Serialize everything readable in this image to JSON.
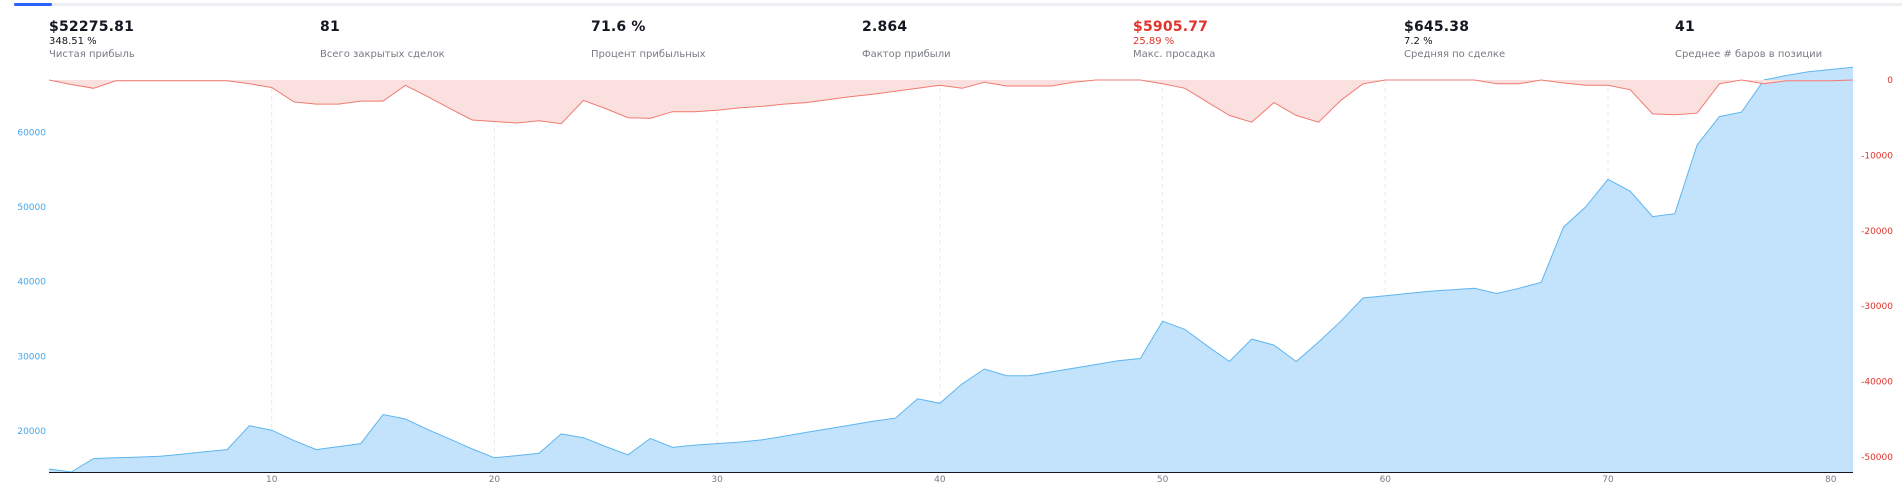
{
  "progress": 0.02,
  "stats": [
    {
      "value": "$52275.81",
      "sub": "348.51 %",
      "label": "Чистая прибыль",
      "negative": false
    },
    {
      "value": "81",
      "sub": "",
      "label": "Всего закрытых сделок",
      "negative": false
    },
    {
      "value": "71.6 %",
      "sub": "",
      "label": "Процент прибыльных",
      "negative": false
    },
    {
      "value": "2.864",
      "sub": "",
      "label": "Фактор прибыли",
      "negative": false
    },
    {
      "value": "$5905.77",
      "sub": "25.89 %",
      "label": "Макс. просадка",
      "negative": true
    },
    {
      "value": "$645.38",
      "sub": "7.2 %",
      "label": "Средняя по сделке",
      "negative": false
    },
    {
      "value": "41",
      "sub": "",
      "label": "Среднее # баров в позиции",
      "negative": false
    }
  ],
  "colors": {
    "equity_line": "#5eb5f0",
    "equity_fill": "#c2e3fb",
    "drawdown_line": "#ef7b71",
    "drawdown_fill": "#fae0de",
    "left_axis_text": "#43a6ec",
    "right_axis_text": "#e0342b",
    "negative_text": "#e0342b"
  },
  "chart_data": {
    "type": "area",
    "x_ticks": [
      "10",
      "20",
      "30",
      "40",
      "50",
      "60",
      "70",
      "80"
    ],
    "xlim": [
      0,
      81
    ],
    "left_axis": {
      "ticks": [
        "20000",
        "30000",
        "40000",
        "50000",
        "60000"
      ],
      "ylim": [
        14500,
        67000
      ]
    },
    "right_axis": {
      "ticks": [
        "0",
        "-10000",
        "-20000",
        "-30000",
        "-40000",
        "-50000"
      ],
      "ylim": [
        -52000,
        0
      ]
    },
    "series": [
      {
        "axis": "left",
        "x": [
          0,
          1,
          2,
          3,
          4,
          5,
          6,
          7,
          8,
          9,
          10,
          11,
          12,
          13,
          14,
          15,
          16,
          17,
          18,
          19,
          20,
          21,
          22,
          23,
          24,
          25,
          26,
          27,
          28,
          29,
          30,
          31,
          32,
          33,
          34,
          35,
          36,
          37,
          38,
          39,
          40,
          41,
          42,
          43,
          44,
          45,
          46,
          47,
          48,
          49,
          50,
          51,
          52,
          53,
          54,
          55,
          56,
          57,
          58,
          59,
          60,
          61,
          62,
          63,
          64,
          65,
          66,
          67,
          68,
          69,
          70,
          71,
          72,
          73,
          74,
          75,
          76,
          77,
          78,
          79,
          80,
          81
        ],
        "values": [
          14900,
          14500,
          16300,
          16400,
          16500,
          16600,
          16900,
          17200,
          17500,
          20700,
          20100,
          18700,
          17500,
          17900,
          18300,
          22200,
          21600,
          20200,
          18900,
          17600,
          16400,
          16700,
          17000,
          19600,
          19100,
          17900,
          16800,
          19000,
          17800,
          18100,
          18300,
          18500,
          18800,
          19300,
          19800,
          20300,
          20800,
          21300,
          21700,
          24300,
          23700,
          26300,
          28300,
          27400,
          27400,
          27900,
          28400,
          28900,
          29400,
          29700,
          34700,
          33600,
          31400,
          29300,
          32300,
          31500,
          29300,
          31900,
          34700,
          37800,
          38100,
          38400,
          38700,
          38900,
          39100,
          38400,
          39100,
          39900,
          47300,
          50000,
          53700,
          52100,
          48700,
          49100,
          58300,
          62100,
          62700,
          67000,
          67600,
          68100,
          68400,
          68700
        ]
      },
      {
        "axis": "right",
        "x": [
          0,
          1,
          2,
          3,
          4,
          5,
          6,
          7,
          8,
          9,
          10,
          11,
          12,
          13,
          14,
          15,
          16,
          17,
          18,
          19,
          20,
          21,
          22,
          23,
          24,
          25,
          26,
          27,
          28,
          29,
          30,
          31,
          32,
          33,
          34,
          35,
          36,
          37,
          38,
          39,
          40,
          41,
          42,
          43,
          44,
          45,
          46,
          47,
          48,
          49,
          50,
          51,
          52,
          53,
          54,
          55,
          56,
          57,
          58,
          59,
          60,
          61,
          62,
          63,
          64,
          65,
          66,
          67,
          68,
          69,
          70,
          71,
          72,
          73,
          74,
          75,
          76,
          77,
          78,
          79,
          80,
          81
        ],
        "values": [
          0,
          -600,
          -1100,
          -100,
          -100,
          -100,
          -100,
          -100,
          -100,
          -500,
          -1000,
          -2900,
          -3200,
          -3200,
          -2800,
          -2800,
          -700,
          -2200,
          -3800,
          -5300,
          -5500,
          -5700,
          -5400,
          -5800,
          -2700,
          -3800,
          -5000,
          -5100,
          -4200,
          -4200,
          -4000,
          -3700,
          -3500,
          -3200,
          -3000,
          -2600,
          -2200,
          -1900,
          -1500,
          -1100,
          -700,
          -1100,
          -300,
          -800,
          -800,
          -800,
          -300,
          0,
          0,
          0,
          -500,
          -1100,
          -2900,
          -4700,
          -5600,
          -3000,
          -4700,
          -5600,
          -2700,
          -500,
          0,
          0,
          0,
          0,
          0,
          -500,
          -500,
          0,
          -400,
          -700,
          -700,
          -1300,
          -4500,
          -4600,
          -4400,
          -500,
          0,
          -500,
          -100,
          -100,
          -100,
          0
        ]
      }
    ]
  }
}
